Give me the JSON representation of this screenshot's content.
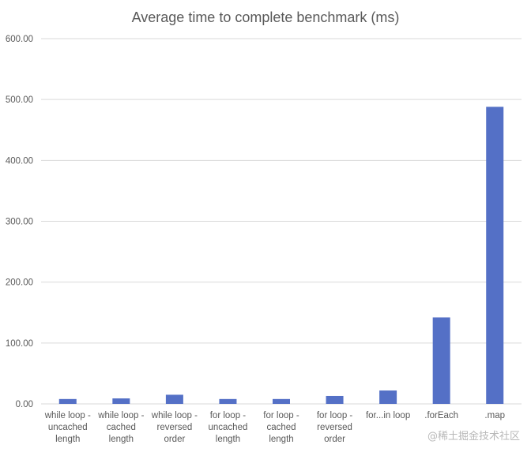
{
  "chart_data": {
    "type": "bar",
    "title": "Average time to complete benchmark (ms)",
    "xlabel": "",
    "ylabel": "",
    "ylim": [
      0,
      600
    ],
    "y_ticks": [
      "0.00",
      "100.00",
      "200.00",
      "300.00",
      "400.00",
      "500.00",
      "600.00"
    ],
    "grid": true,
    "legend": "none",
    "categories": [
      [
        "while loop -",
        "uncached",
        "length"
      ],
      [
        "while loop -",
        "cached",
        "length"
      ],
      [
        "while loop -",
        "reversed",
        "order"
      ],
      [
        "for loop -",
        "uncached",
        "length"
      ],
      [
        "for loop -",
        "cached",
        "length"
      ],
      [
        "for loop -",
        "reversed",
        "order"
      ],
      [
        "for...in loop"
      ],
      [
        ".forEach"
      ],
      [
        ".map"
      ]
    ],
    "values": [
      8.0,
      9.0,
      15.0,
      8.0,
      8.0,
      13.0,
      22.0,
      142.0,
      488.0
    ],
    "bar_color": "#5470c6"
  },
  "watermark": "@稀土掘金技术社区"
}
